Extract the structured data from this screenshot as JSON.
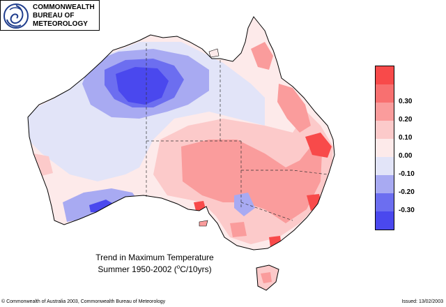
{
  "logo": {
    "line1": "COMMONWEALTH",
    "line2": "BUREAU OF",
    "line3": "METEOROLOGY"
  },
  "title": {
    "line1": "Trend in Maximum Temperature",
    "line2_prefix": "Summer  1950-2002 (",
    "line2_sup": "o",
    "line2_suffix": "C/10yrs)"
  },
  "legend": {
    "items": [
      {
        "label": "",
        "color": "#f84a4a"
      },
      {
        "label": "0.30",
        "color": "#f87070"
      },
      {
        "label": "0.20",
        "color": "#fa9c9c"
      },
      {
        "label": "0.10",
        "color": "#fccaca"
      },
      {
        "label": "0.00",
        "color": "#fdeaea"
      },
      {
        "label": "-0.10",
        "color": "#e2e4f8"
      },
      {
        "label": "-0.20",
        "color": "#a8aaf2"
      },
      {
        "label": "-0.30",
        "color": "#6c6ef0"
      },
      {
        "label": "",
        "color": "#4a48ee"
      }
    ]
  },
  "footer": {
    "copyright": "© Commonwealth of Australia 2003, Commonwealth Bureau of Meteorology",
    "issued": "Issued: 13/02/2003"
  }
}
